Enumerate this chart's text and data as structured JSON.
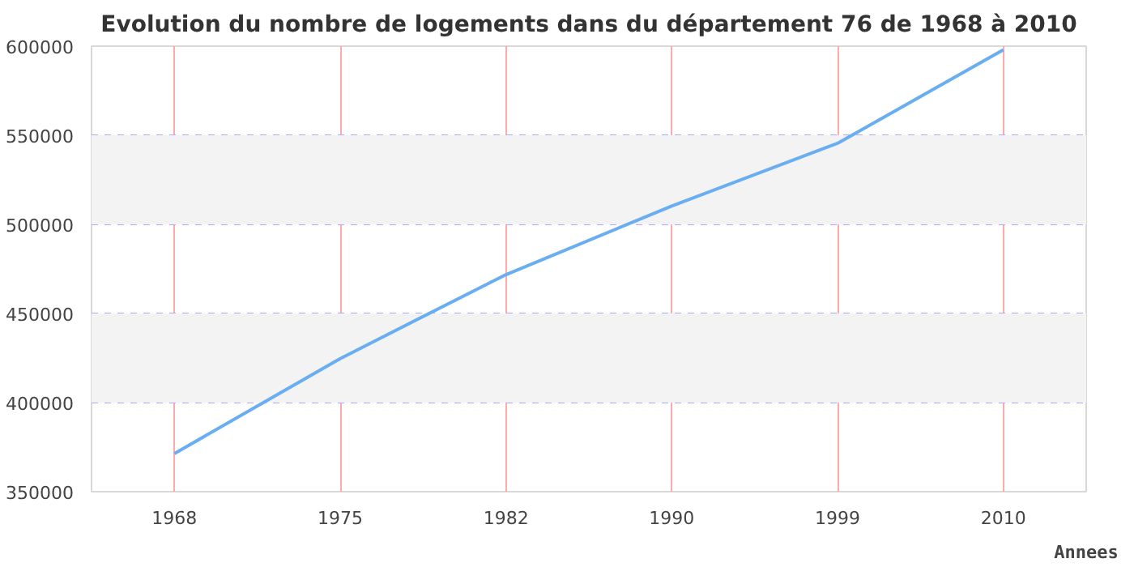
{
  "chart_data": {
    "type": "line",
    "title": "Evolution du nombre de logements dans du département 76 de 1968 à 2010",
    "xlabel": "Annees",
    "categories": [
      "1968",
      "1975",
      "1982",
      "1990",
      "1999",
      "2010"
    ],
    "series": [
      {
        "color": "#6aaef2",
        "values": [
          371400,
          424700,
          471800,
          510300,
          545500,
          598000
        ]
      }
    ],
    "ylim": [
      350000,
      600000
    ],
    "yticks": [
      350000,
      400000,
      450000,
      500000,
      550000,
      600000
    ],
    "grid": true,
    "marker": "none",
    "line_style": "solid",
    "bands": [
      {
        "axis": "y",
        "from": 400000,
        "to": 450000,
        "color": "#f3f3f3"
      },
      {
        "axis": "y",
        "from": 500000,
        "to": 550000,
        "color": "#f3f3f3"
      }
    ]
  }
}
